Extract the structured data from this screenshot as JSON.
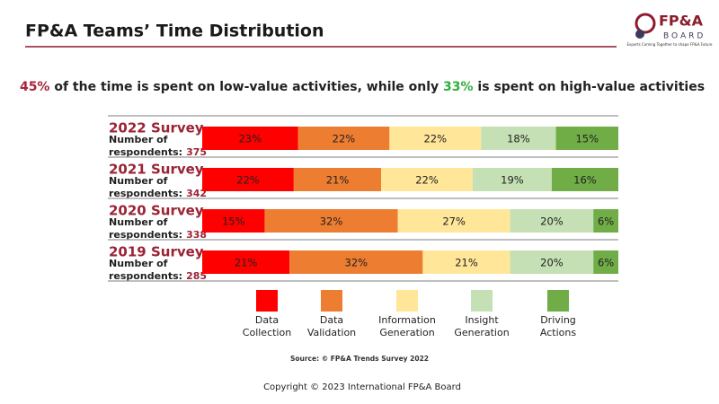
{
  "chart_data": {
    "type": "stacked_barh",
    "title": "FP&A Teams’ Time Distribution",
    "subtitle_parts": [
      "45%",
      " of the time is spent on low-value activities, while only ",
      "33%",
      " is spent on high-value activities"
    ],
    "subtitle_colors": [
      "#a8233a",
      "#222222",
      "#2fae3c",
      "#222222"
    ],
    "categories": [
      "2022 Survey",
      "2021 Survey",
      "2020 Survey",
      "2019 Survey"
    ],
    "respondents_label": [
      "Number of",
      "respondents:"
    ],
    "respondents": [
      375,
      342,
      338,
      285
    ],
    "xlim": [
      0,
      100
    ],
    "series": [
      {
        "name": "Data Collection",
        "color": "#ff0000",
        "values": [
          23,
          22,
          15,
          21
        ],
        "value_labels": [
          "23%",
          "22%",
          "15%",
          "21%"
        ]
      },
      {
        "name": "Data Validation",
        "color": "#ed7d31",
        "values": [
          22,
          21,
          32,
          32
        ],
        "value_labels": [
          "22%",
          "21%",
          "32%",
          "32%"
        ]
      },
      {
        "name": "Information Generation",
        "color": "#ffe699",
        "values": [
          22,
          22,
          27,
          21
        ],
        "value_labels": [
          "22%",
          "22%",
          "27%",
          "21%"
        ]
      },
      {
        "name": "Insight Generation",
        "color": "#c5e0b4",
        "values": [
          18,
          19,
          20,
          20
        ],
        "value_labels": [
          "18%",
          "19%",
          "20%",
          "20%"
        ]
      },
      {
        "name": "Driving Actions",
        "color": "#70ad47",
        "values": [
          15,
          16,
          6,
          6
        ],
        "value_labels": [
          "15%",
          "16%",
          "6%",
          "6%"
        ]
      }
    ],
    "source": "Source: © FP&A Trends Survey 2022",
    "copyright": "Copyright © 2023 International FP&A Board",
    "logo": {
      "name": "FP&A",
      "sub": "BOARD",
      "tagline": "Experts Coming Together to shape FP&A Future"
    }
  }
}
